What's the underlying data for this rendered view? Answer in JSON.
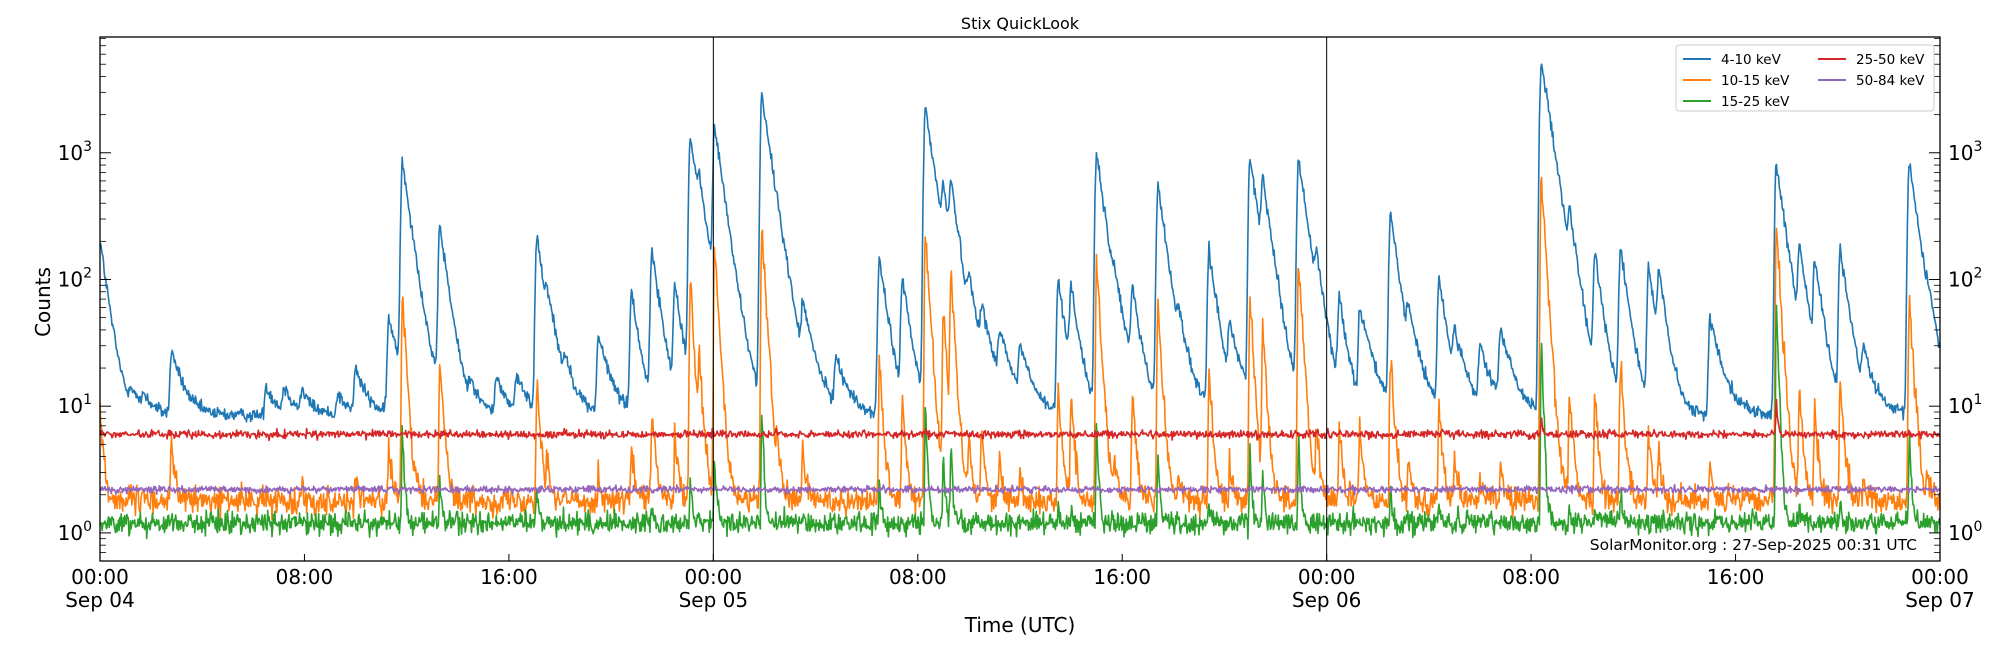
{
  "chart_data": {
    "type": "line",
    "title": "Stix QuickLook",
    "xlabel": "Time (UTC)",
    "ylabel": "Counts",
    "yscale": "log",
    "ylim": [
      0.6,
      8200
    ],
    "xlim": [
      "2025-09-04T00:00",
      "2025-09-07T00:00"
    ],
    "grid": false,
    "legend_placement": "top-right",
    "day_separators": [
      "2025-09-05T00:00",
      "2025-09-06T00:00"
    ],
    "x_ticks": [
      {
        "time": "2025-09-04T00:00",
        "label": "00:00",
        "sublabel": "Sep 04"
      },
      {
        "time": "2025-09-04T08:00",
        "label": "08:00",
        "sublabel": ""
      },
      {
        "time": "2025-09-04T16:00",
        "label": "16:00",
        "sublabel": ""
      },
      {
        "time": "2025-09-05T00:00",
        "label": "00:00",
        "sublabel": "Sep 05"
      },
      {
        "time": "2025-09-05T08:00",
        "label": "08:00",
        "sublabel": ""
      },
      {
        "time": "2025-09-05T16:00",
        "label": "16:00",
        "sublabel": ""
      },
      {
        "time": "2025-09-06T00:00",
        "label": "00:00",
        "sublabel": "Sep 06"
      },
      {
        "time": "2025-09-06T08:00",
        "label": "08:00",
        "sublabel": ""
      },
      {
        "time": "2025-09-06T16:00",
        "label": "16:00",
        "sublabel": ""
      },
      {
        "time": "2025-09-07T00:00",
        "label": "00:00",
        "sublabel": "Sep 07"
      }
    ],
    "y_ticks": [
      {
        "value": 1,
        "base": "10",
        "exp": "0"
      },
      {
        "value": 10,
        "base": "10",
        "exp": "1"
      },
      {
        "value": 100,
        "base": "10",
        "exp": "2"
      },
      {
        "value": 1000,
        "base": "10",
        "exp": "3"
      }
    ],
    "series": [
      {
        "name": "4-10 keV",
        "color": "#1f77b4",
        "background": 8.5
      },
      {
        "name": "10-15 keV",
        "color": "#ff7f0e",
        "background": 1.8
      },
      {
        "name": "15-25 keV",
        "color": "#2ca02c",
        "background": 1.2
      },
      {
        "name": "25-50 keV",
        "color": "#d62728",
        "background": 6.0
      },
      {
        "name": "50-84 keV",
        "color": "#9467bd",
        "background": 2.2
      }
    ],
    "peaks_columns": [
      "time",
      "4-10 keV",
      "10-15 keV",
      "15-25 keV"
    ],
    "peaks": [
      [
        "2025-09-04T00:00",
        200,
        8,
        0
      ],
      [
        "2025-09-04T01:12",
        4,
        0,
        0
      ],
      [
        "2025-09-04T01:42",
        3,
        0,
        0
      ],
      [
        "2025-09-04T02:48",
        19,
        4,
        0
      ],
      [
        "2025-09-04T06:30",
        6,
        0,
        0
      ],
      [
        "2025-09-04T07:12",
        5,
        0,
        0
      ],
      [
        "2025-09-04T07:54",
        4,
        0.5,
        0
      ],
      [
        "2025-09-04T09:18",
        4,
        0,
        0
      ],
      [
        "2025-09-04T10:00",
        11,
        0.8,
        0
      ],
      [
        "2025-09-04T11:18",
        40,
        3,
        0
      ],
      [
        "2025-09-04T11:50",
        850,
        70,
        5
      ],
      [
        "2025-09-04T13:18",
        255,
        25,
        1.5
      ],
      [
        "2025-09-04T14:30",
        5,
        0,
        0
      ],
      [
        "2025-09-04T15:30",
        8,
        0,
        0
      ],
      [
        "2025-09-04T16:18",
        8,
        0,
        0
      ],
      [
        "2025-09-04T17:06",
        215,
        15,
        1
      ],
      [
        "2025-09-04T17:30",
        30,
        2,
        0
      ],
      [
        "2025-09-04T18:12",
        8,
        0,
        0
      ],
      [
        "2025-09-04T19:30",
        27,
        1,
        0
      ],
      [
        "2025-09-04T20:48",
        72,
        3,
        0
      ],
      [
        "2025-09-04T21:36",
        160,
        8,
        0.5
      ],
      [
        "2025-09-04T22:30",
        80,
        4,
        0
      ],
      [
        "2025-09-04T23:06",
        1290,
        90,
        1.5
      ],
      [
        "2025-09-04T23:27",
        280,
        20,
        0
      ],
      [
        "2025-09-05T00:03",
        1540,
        170,
        3
      ],
      [
        "2025-09-05T01:54",
        2790,
        240,
        8
      ],
      [
        "2025-09-05T02:30",
        30,
        2,
        0
      ],
      [
        "2025-09-05T03:30",
        40,
        3,
        0
      ],
      [
        "2025-09-05T04:48",
        15,
        0,
        0
      ],
      [
        "2025-09-05T06:30",
        140,
        20,
        1
      ],
      [
        "2025-09-05T07:24",
        90,
        10,
        0
      ],
      [
        "2025-09-05T08:18",
        2290,
        250,
        9
      ],
      [
        "2025-09-05T09:00",
        340,
        60,
        3
      ],
      [
        "2025-09-05T09:18",
        390,
        100,
        4
      ],
      [
        "2025-09-05T10:00",
        50,
        4,
        0
      ],
      [
        "2025-09-05T10:30",
        30,
        5,
        0
      ],
      [
        "2025-09-05T11:12",
        25,
        2,
        0
      ],
      [
        "2025-09-05T12:00",
        18,
        1,
        0
      ],
      [
        "2025-09-05T13:30",
        90,
        12,
        0.5
      ],
      [
        "2025-09-05T14:00",
        70,
        10,
        0.5
      ],
      [
        "2025-09-05T15:00",
        940,
        130,
        6
      ],
      [
        "2025-09-05T15:42",
        30,
        2,
        0
      ],
      [
        "2025-09-05T16:24",
        70,
        10,
        0
      ],
      [
        "2025-09-05T17:24",
        540,
        60,
        3
      ],
      [
        "2025-09-05T18:12",
        20,
        1,
        0
      ],
      [
        "2025-09-05T19:24",
        160,
        15,
        0.5
      ],
      [
        "2025-09-05T20:12",
        30,
        2,
        0
      ],
      [
        "2025-09-05T21:00",
        900,
        70,
        3
      ],
      [
        "2025-09-05T21:30",
        500,
        40,
        2
      ],
      [
        "2025-09-05T22:54",
        890,
        130,
        4
      ],
      [
        "2025-09-05T23:36",
        80,
        5,
        0
      ],
      [
        "2025-09-06T00:30",
        60,
        5,
        0
      ],
      [
        "2025-09-06T01:18",
        50,
        5,
        0
      ],
      [
        "2025-09-06T02:30",
        310,
        25,
        1
      ],
      [
        "2025-09-06T03:12",
        30,
        2,
        0
      ],
      [
        "2025-09-06T04:24",
        95,
        8,
        0.5
      ],
      [
        "2025-09-06T05:00",
        25,
        2,
        0
      ],
      [
        "2025-09-06T06:00",
        20,
        1,
        0
      ],
      [
        "2025-09-06T06:48",
        30,
        2,
        0
      ],
      [
        "2025-09-06T08:24",
        5290,
        650,
        30
      ],
      [
        "2025-09-06T09:30",
        190,
        12,
        0.5
      ],
      [
        "2025-09-06T10:30",
        140,
        10,
        0.5
      ],
      [
        "2025-09-06T11:30",
        170,
        20,
        1
      ],
      [
        "2025-09-06T12:36",
        110,
        5,
        0
      ],
      [
        "2025-09-06T13:00",
        85,
        3,
        0
      ],
      [
        "2025-09-06T15:00",
        40,
        2,
        0
      ],
      [
        "2025-09-06T17:36",
        790,
        240,
        60
      ],
      [
        "2025-09-06T18:30",
        150,
        12,
        0.5
      ],
      [
        "2025-09-06T19:06",
        120,
        8,
        0
      ],
      [
        "2025-09-06T20:06",
        170,
        15,
        0.5
      ],
      [
        "2025-09-06T21:00",
        15,
        1,
        0
      ],
      [
        "2025-09-06T22:48",
        840,
        70,
        5
      ],
      [
        "2025-09-06T23:30",
        20,
        1,
        0
      ]
    ],
    "annotation": "SolarMonitor.org : 27-Sep-2025 00:31 UTC"
  }
}
